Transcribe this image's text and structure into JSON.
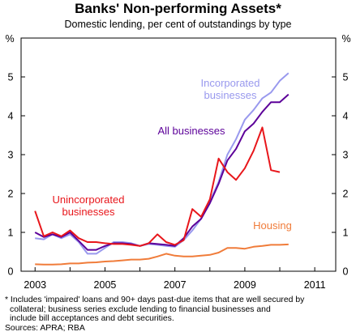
{
  "chart_data": {
    "type": "line",
    "title": "Banks' Non-performing Assets*",
    "subtitle": "Domestic lending, per cent of outstandings by type",
    "y_unit_left": "%",
    "y_unit_right": "%",
    "ylim": [
      0,
      6
    ],
    "yticks": [
      0,
      1,
      2,
      3,
      4,
      5
    ],
    "xlim": [
      2002.6,
      2011.6
    ],
    "xticks": [
      "2003",
      "2005",
      "2007",
      "2009",
      "2011"
    ],
    "xtick_values": [
      2003,
      2005,
      2007,
      2009,
      2011
    ],
    "grid": false,
    "legend": "none (series labelled directly)",
    "series": [
      {
        "name": "Incorporated businesses",
        "label_lines": [
          "Incorporated",
          "businesses"
        ],
        "color": "#9999ee",
        "points": [
          [
            2003.0,
            0.85
          ],
          [
            2003.25,
            0.82
          ],
          [
            2003.5,
            0.95
          ],
          [
            2003.75,
            0.85
          ],
          [
            2004.0,
            0.95
          ],
          [
            2004.25,
            0.75
          ],
          [
            2004.5,
            0.45
          ],
          [
            2004.75,
            0.45
          ],
          [
            2005.0,
            0.6
          ],
          [
            2005.25,
            0.75
          ],
          [
            2005.5,
            0.75
          ],
          [
            2005.75,
            0.72
          ],
          [
            2006.0,
            0.65
          ],
          [
            2006.25,
            0.7
          ],
          [
            2006.5,
            0.68
          ],
          [
            2006.75,
            0.65
          ],
          [
            2007.0,
            0.63
          ],
          [
            2007.25,
            0.8
          ],
          [
            2007.5,
            1.05
          ],
          [
            2007.75,
            1.35
          ],
          [
            2008.0,
            1.8
          ],
          [
            2008.25,
            2.3
          ],
          [
            2008.5,
            3.0
          ],
          [
            2008.75,
            3.4
          ],
          [
            2009.0,
            3.9
          ],
          [
            2009.25,
            4.15
          ],
          [
            2009.5,
            4.45
          ],
          [
            2009.75,
            4.6
          ],
          [
            2010.0,
            4.9
          ],
          [
            2010.25,
            5.1
          ]
        ]
      },
      {
        "name": "All businesses",
        "label_lines": [
          "All businesses"
        ],
        "color": "#5c0099",
        "points": [
          [
            2003.0,
            1.0
          ],
          [
            2003.25,
            0.88
          ],
          [
            2003.5,
            0.95
          ],
          [
            2003.75,
            0.88
          ],
          [
            2004.0,
            1.0
          ],
          [
            2004.25,
            0.78
          ],
          [
            2004.5,
            0.55
          ],
          [
            2004.75,
            0.55
          ],
          [
            2005.0,
            0.65
          ],
          [
            2005.25,
            0.72
          ],
          [
            2005.5,
            0.72
          ],
          [
            2005.75,
            0.7
          ],
          [
            2006.0,
            0.65
          ],
          [
            2006.25,
            0.72
          ],
          [
            2006.5,
            0.7
          ],
          [
            2006.75,
            0.68
          ],
          [
            2007.0,
            0.65
          ],
          [
            2007.25,
            0.85
          ],
          [
            2007.5,
            1.15
          ],
          [
            2007.75,
            1.35
          ],
          [
            2008.0,
            1.75
          ],
          [
            2008.25,
            2.25
          ],
          [
            2008.5,
            2.85
          ],
          [
            2008.75,
            3.15
          ],
          [
            2009.0,
            3.6
          ],
          [
            2009.25,
            3.8
          ],
          [
            2009.5,
            4.1
          ],
          [
            2009.75,
            4.35
          ],
          [
            2010.0,
            4.35
          ],
          [
            2010.25,
            4.55
          ]
        ]
      },
      {
        "name": "Unincorporated businesses",
        "label_lines": [
          "Unincorporated",
          "businesses"
        ],
        "color": "#e8161b",
        "points": [
          [
            2003.0,
            1.55
          ],
          [
            2003.25,
            0.9
          ],
          [
            2003.5,
            1.0
          ],
          [
            2003.75,
            0.9
          ],
          [
            2004.0,
            1.05
          ],
          [
            2004.25,
            0.85
          ],
          [
            2004.5,
            0.75
          ],
          [
            2004.75,
            0.75
          ],
          [
            2005.0,
            0.72
          ],
          [
            2005.25,
            0.7
          ],
          [
            2005.5,
            0.7
          ],
          [
            2005.75,
            0.68
          ],
          [
            2006.0,
            0.65
          ],
          [
            2006.25,
            0.72
          ],
          [
            2006.5,
            0.95
          ],
          [
            2006.75,
            0.75
          ],
          [
            2007.0,
            0.68
          ],
          [
            2007.25,
            0.8
          ],
          [
            2007.5,
            1.6
          ],
          [
            2007.75,
            1.4
          ],
          [
            2008.0,
            1.85
          ],
          [
            2008.25,
            2.9
          ],
          [
            2008.5,
            2.55
          ],
          [
            2008.75,
            2.35
          ],
          [
            2009.0,
            2.65
          ],
          [
            2009.25,
            3.1
          ],
          [
            2009.5,
            3.7
          ],
          [
            2009.75,
            2.6
          ],
          [
            2010.0,
            2.55
          ]
        ]
      },
      {
        "name": "Housing",
        "label_lines": [
          "Housing"
        ],
        "color": "#f07c3a",
        "points": [
          [
            2003.0,
            0.18
          ],
          [
            2003.25,
            0.17
          ],
          [
            2003.5,
            0.17
          ],
          [
            2003.75,
            0.18
          ],
          [
            2004.0,
            0.2
          ],
          [
            2004.25,
            0.2
          ],
          [
            2004.5,
            0.22
          ],
          [
            2004.75,
            0.23
          ],
          [
            2005.0,
            0.25
          ],
          [
            2005.25,
            0.26
          ],
          [
            2005.5,
            0.28
          ],
          [
            2005.75,
            0.3
          ],
          [
            2006.0,
            0.3
          ],
          [
            2006.25,
            0.32
          ],
          [
            2006.5,
            0.38
          ],
          [
            2006.75,
            0.45
          ],
          [
            2007.0,
            0.4
          ],
          [
            2007.25,
            0.38
          ],
          [
            2007.5,
            0.38
          ],
          [
            2007.75,
            0.4
          ],
          [
            2008.0,
            0.42
          ],
          [
            2008.25,
            0.48
          ],
          [
            2008.5,
            0.6
          ],
          [
            2008.75,
            0.6
          ],
          [
            2009.0,
            0.58
          ],
          [
            2009.25,
            0.63
          ],
          [
            2009.5,
            0.65
          ],
          [
            2009.75,
            0.68
          ],
          [
            2010.0,
            0.68
          ],
          [
            2010.25,
            0.69
          ]
        ]
      }
    ]
  },
  "footnote": {
    "lines": [
      "*  Includes 'impaired' loans and 90+ days past-due items that are well secured by",
      "collateral; business series exclude lending to financial businesses and",
      "include bill acceptances and debt securities."
    ],
    "sources": "Sources: APRA; RBA"
  }
}
